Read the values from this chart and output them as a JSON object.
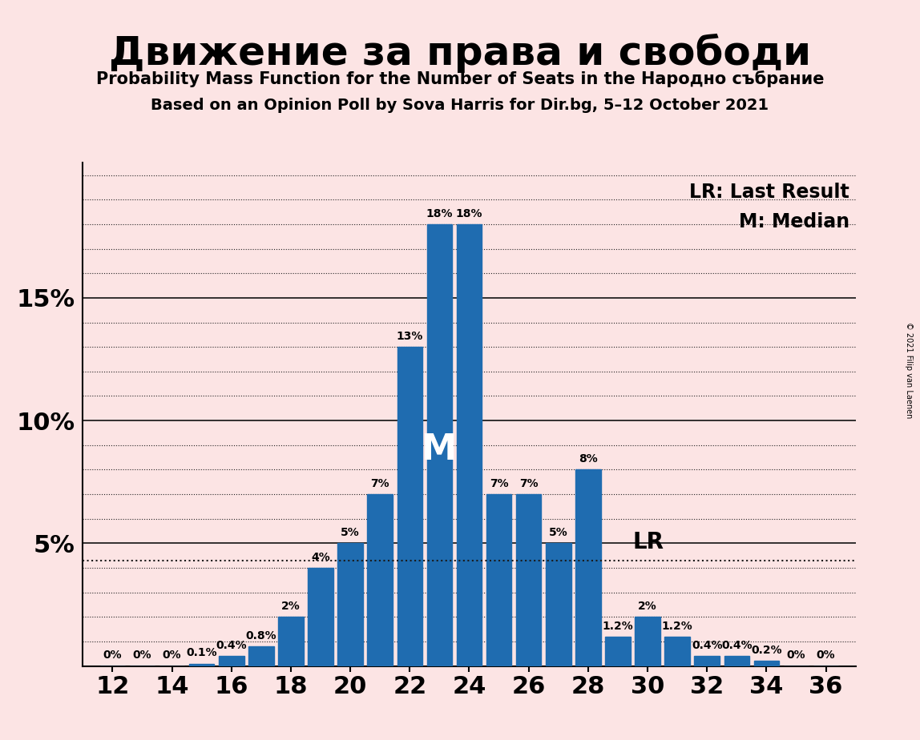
{
  "title": "Движение за права и свободи",
  "subtitle1": "Probability Mass Function for the Number of Seats in the Народно събрание",
  "subtitle2": "Based on an Opinion Poll by Sova Harris for Dir.bg, 5–12 October 2021",
  "copyright": "© 2021 Filip van Laenen",
  "background_color": "#fce4e4",
  "bar_color": "#1f6cb0",
  "seats": [
    12,
    13,
    14,
    15,
    16,
    17,
    18,
    19,
    20,
    21,
    22,
    23,
    24,
    25,
    26,
    27,
    28,
    29,
    30,
    31,
    32,
    33,
    34,
    35,
    36
  ],
  "probabilities": [
    0.0,
    0.0,
    0.0,
    0.001,
    0.004,
    0.008,
    0.02,
    0.04,
    0.05,
    0.07,
    0.13,
    0.18,
    0.18,
    0.07,
    0.07,
    0.05,
    0.08,
    0.012,
    0.02,
    0.012,
    0.004,
    0.004,
    0.002,
    0.0,
    0.0
  ],
  "bar_labels": [
    "0%",
    "0%",
    "0%",
    "0.1%",
    "0.4%",
    "0.8%",
    "2%",
    "4%",
    "5%",
    "7%",
    "13%",
    "18%",
    "18%",
    "7%",
    "7%",
    "5%",
    "8%",
    "1.2%",
    "2%",
    "1.2%",
    "0.4%",
    "0.4%",
    "0.2%",
    "0%",
    "0%"
  ],
  "median_seat": 23,
  "lr_value": 0.043,
  "lr_seat": 28,
  "lr_label": "LR",
  "median_label": "M",
  "legend_lr": "LR: Last Result",
  "legend_m": "M: Median",
  "major_yticks": [
    0.05,
    0.1,
    0.15
  ],
  "major_ytick_labels": [
    "5%",
    "10%",
    "15%"
  ],
  "minor_ytick_step": 0.01,
  "xtick_positions": [
    12,
    14,
    16,
    18,
    20,
    22,
    24,
    26,
    28,
    30,
    32,
    34,
    36
  ],
  "xtick_labels": [
    "12",
    "14",
    "16",
    "18",
    "20",
    "22",
    "24",
    "26",
    "28",
    "30",
    "32",
    "34",
    "36"
  ],
  "xlim": [
    11.0,
    37.0
  ],
  "ylim": [
    0,
    0.205
  ]
}
